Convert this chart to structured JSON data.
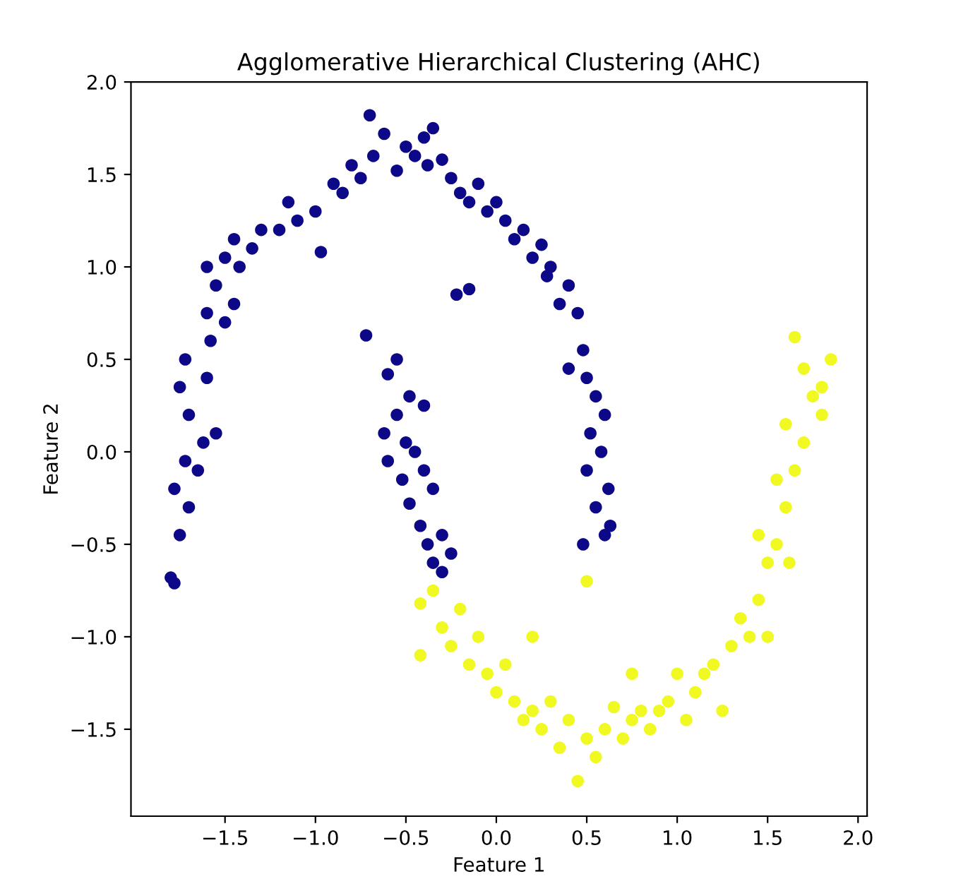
{
  "chart_data": {
    "type": "scatter",
    "title": "Agglomerative Hierarchical Clustering (AHC)",
    "xlabel": "Feature 1",
    "ylabel": "Feature 2",
    "xlim": [
      -2.02,
      2.05
    ],
    "ylim": [
      -1.97,
      2.0
    ],
    "xticks": [
      {
        "value": -1.5,
        "label": "−1.5"
      },
      {
        "value": -1.0,
        "label": "−1.0"
      },
      {
        "value": -0.5,
        "label": "−0.5"
      },
      {
        "value": 0,
        "label": "0.0"
      },
      0.5,
      {
        "value": 1,
        "label": "1.0"
      },
      1.5,
      {
        "value": 2,
        "label": "2.0"
      }
    ],
    "yticks": [
      {
        "value": -1.5,
        "label": "−1.5"
      },
      {
        "value": -1.0,
        "label": "−1.0"
      },
      {
        "value": -0.5,
        "label": "−0.5"
      },
      {
        "value": 0,
        "label": "0.0"
      },
      0.5,
      {
        "value": 1,
        "label": "1.0"
      },
      1.5,
      {
        "value": 2,
        "label": "2.0"
      }
    ],
    "grid": false,
    "legend": false,
    "marker": "circle",
    "series": [
      {
        "color": "#0d0887",
        "x": [
          -1.8,
          -1.78,
          -1.75,
          -1.78,
          -1.72,
          -1.7,
          -1.65,
          -1.62,
          -1.7,
          -1.75,
          -1.72,
          -1.6,
          -1.55,
          -1.58,
          -1.6,
          -1.5,
          -1.45,
          -1.55,
          -1.6,
          -1.5,
          -1.42,
          -1.35,
          -1.45,
          -1.3,
          -1.2,
          -1.1,
          -1.15,
          -1.0,
          -0.97,
          -0.9,
          -0.85,
          -0.8,
          -0.75,
          -0.68,
          -0.7,
          -0.62,
          -0.55,
          -0.5,
          -0.45,
          -0.4,
          -0.38,
          -0.3,
          -0.35,
          -0.25,
          -0.2,
          -0.15,
          -0.1,
          -0.05,
          0.0,
          -0.15,
          -0.22,
          0.05,
          0.1,
          0.15,
          0.2,
          0.25,
          0.28,
          0.35,
          0.3,
          0.4,
          0.45,
          0.48,
          0.4,
          0.5,
          0.55,
          0.6,
          0.52,
          0.58,
          0.5,
          0.62,
          0.55,
          0.63,
          0.48,
          0.6,
          -0.72,
          -0.6,
          -0.55,
          -0.48,
          -0.4,
          -0.55,
          -0.62,
          -0.5,
          -0.45,
          -0.6,
          -0.52,
          -0.4,
          -0.48,
          -0.35,
          -0.42,
          -0.38,
          -0.3,
          -0.35,
          -0.25,
          -0.3
        ],
        "values": [
          -0.68,
          -0.71,
          -0.45,
          -0.2,
          -0.05,
          -0.3,
          -0.1,
          0.05,
          0.2,
          0.35,
          0.5,
          0.4,
          0.1,
          0.6,
          0.75,
          0.7,
          0.8,
          0.9,
          1.0,
          1.05,
          1.0,
          1.1,
          1.15,
          1.2,
          1.2,
          1.25,
          1.35,
          1.3,
          1.08,
          1.45,
          1.4,
          1.55,
          1.48,
          1.6,
          1.82,
          1.72,
          1.52,
          1.65,
          1.6,
          1.7,
          1.55,
          1.58,
          1.75,
          1.48,
          1.4,
          1.35,
          1.45,
          1.3,
          1.35,
          0.88,
          0.85,
          1.25,
          1.15,
          1.2,
          1.05,
          1.12,
          0.95,
          0.8,
          1.0,
          0.9,
          0.75,
          0.55,
          0.45,
          0.4,
          0.3,
          0.2,
          0.1,
          0.0,
          -0.1,
          -0.2,
          -0.3,
          -0.4,
          -0.5,
          -0.45,
          0.63,
          0.42,
          0.5,
          0.3,
          0.25,
          0.2,
          0.1,
          0.05,
          0.0,
          -0.05,
          -0.15,
          -0.1,
          -0.28,
          -0.2,
          -0.4,
          -0.5,
          -0.45,
          -0.6,
          -0.55,
          -0.65
        ]
      },
      {
        "color": "#f0f921",
        "x": [
          -0.42,
          -0.42,
          -0.35,
          -0.3,
          -0.25,
          -0.2,
          -0.15,
          -0.1,
          -0.05,
          0.0,
          0.05,
          0.1,
          0.15,
          0.2,
          0.25,
          0.3,
          0.35,
          0.4,
          0.45,
          0.5,
          0.55,
          0.6,
          0.65,
          0.7,
          0.75,
          0.8,
          0.85,
          0.9,
          0.95,
          1.0,
          1.05,
          1.1,
          1.15,
          1.2,
          1.25,
          1.3,
          1.35,
          1.4,
          1.45,
          1.5,
          1.45,
          1.55,
          1.6,
          1.55,
          1.65,
          1.7,
          1.6,
          1.75,
          1.7,
          1.65,
          1.8,
          1.85,
          1.8,
          1.62,
          0.75,
          0.2,
          1.5,
          0.5
        ],
        "values": [
          -0.82,
          -1.1,
          -0.75,
          -0.95,
          -1.05,
          -0.85,
          -1.15,
          -1.0,
          -1.2,
          -1.3,
          -1.15,
          -1.35,
          -1.45,
          -1.4,
          -1.5,
          -1.35,
          -1.6,
          -1.45,
          -1.78,
          -1.55,
          -1.65,
          -1.5,
          -1.38,
          -1.55,
          -1.45,
          -1.4,
          -1.5,
          -1.4,
          -1.35,
          -1.2,
          -1.45,
          -1.3,
          -1.2,
          -1.15,
          -1.4,
          -1.05,
          -0.9,
          -1.0,
          -0.8,
          -0.6,
          -0.45,
          -0.5,
          -0.3,
          -0.15,
          -0.1,
          0.05,
          0.15,
          0.3,
          0.45,
          0.62,
          0.35,
          0.5,
          0.2,
          -0.6,
          -1.2,
          -1.0,
          -1.0,
          -0.7
        ]
      }
    ]
  }
}
